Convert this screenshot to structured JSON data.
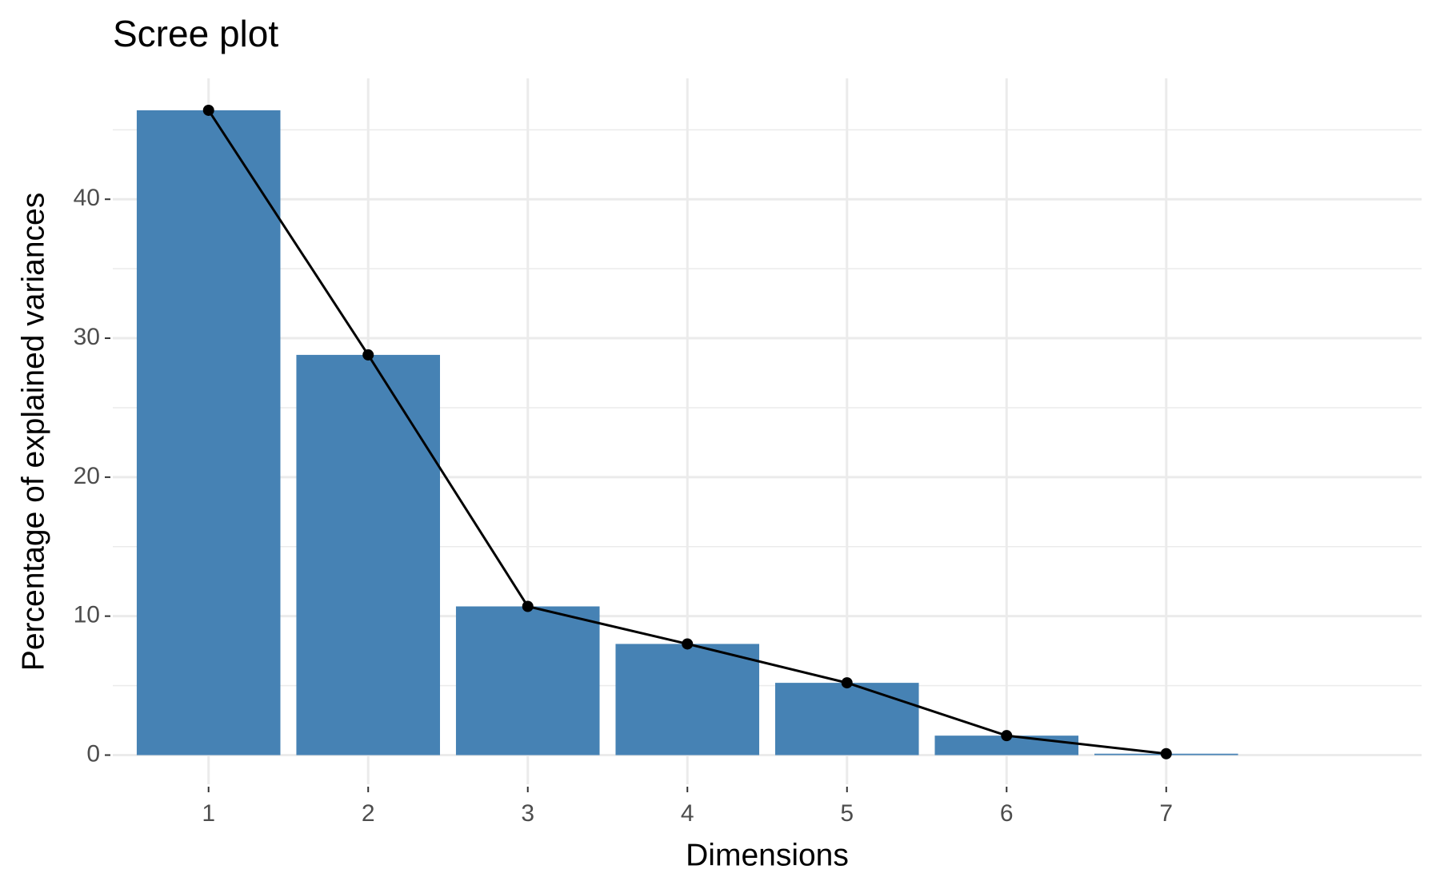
{
  "chart_data": {
    "type": "bar",
    "title": "Scree plot",
    "x_label": "Dimensions",
    "y_label": "Percentage of explained variances",
    "categories": [
      "1",
      "2",
      "3",
      "4",
      "5",
      "6",
      "7"
    ],
    "values": [
      46.4,
      28.8,
      10.7,
      8.0,
      5.2,
      1.4,
      0.1
    ],
    "color": "#4682b4",
    "line_color": "#000000",
    "ylim": [
      -2.1,
      48.7
    ],
    "yticks": [
      0,
      10,
      20,
      30,
      40
    ],
    "grid": true
  }
}
